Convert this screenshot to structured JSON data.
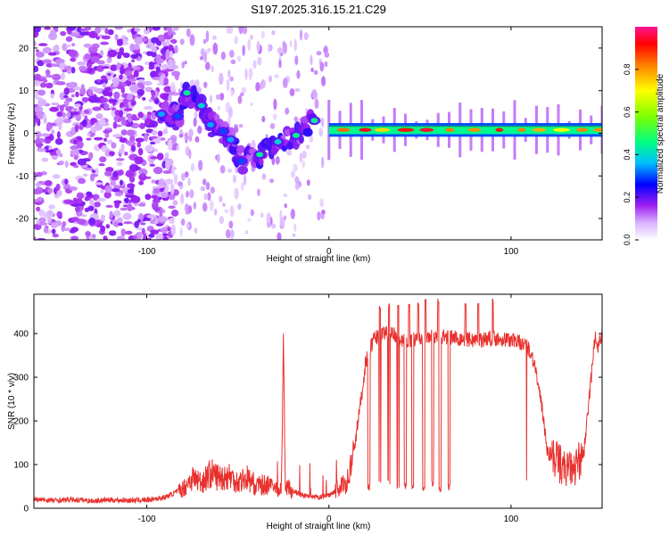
{
  "title": "S197.2025.316.15.21.C29",
  "colors": {
    "snr_line": "#e8312e",
    "background": "#ffffff"
  },
  "chart_data": [
    {
      "type": "heatmap",
      "name": "spectrogram",
      "xlabel": "Height of straight line (km)",
      "ylabel": "Frequency (Hz)",
      "xlim": [
        -162,
        150
      ],
      "ylim": [
        -25,
        25
      ],
      "x_ticks": [
        -100,
        0,
        100
      ],
      "y_ticks": [
        -20,
        -10,
        0,
        10,
        20
      ],
      "colorbar": {
        "label": "Normalized spectral amplitude",
        "range": [
          0.0,
          1.0
        ],
        "ticks": [
          0.0,
          0.2,
          0.4,
          0.6,
          0.8
        ],
        "colormap": [
          "#ffffff",
          "#a020f0",
          "#0000ff",
          "#00bfff",
          "#00ff80",
          "#80ff00",
          "#ffff00",
          "#ff8000",
          "#ff0000",
          "#ff00a0"
        ]
      },
      "features": {
        "noise_region_km": [
          -162,
          -90
        ],
        "descending_branch": [
          {
            "x": -92,
            "freq": 4.5,
            "amp": 0.35
          },
          {
            "x": -83,
            "freq": 4.0,
            "amp": 0.3
          },
          {
            "x": -78,
            "freq": 9.5,
            "amp": 0.45
          },
          {
            "x": -70,
            "freq": 6.5,
            "amp": 0.4
          },
          {
            "x": -65,
            "freq": 2.0,
            "amp": 0.35
          },
          {
            "x": -58,
            "freq": 0.5,
            "amp": 0.3
          },
          {
            "x": -54,
            "freq": -1.5,
            "amp": 0.35
          },
          {
            "x": -48,
            "freq": -6.5,
            "amp": 0.3
          },
          {
            "x": -38,
            "freq": -5.0,
            "amp": 0.45
          },
          {
            "x": -28,
            "freq": -2.0,
            "amp": 0.4
          },
          {
            "x": -18,
            "freq": -0.5,
            "amp": 0.45
          },
          {
            "x": -8,
            "freq": 3.0,
            "amp": 0.45
          }
        ],
        "carrier_band": {
          "x_start": 0,
          "x_end": 150,
          "freq": 0.8,
          "peak_amp": 0.95
        }
      }
    },
    {
      "type": "line",
      "name": "snr",
      "xlabel": "Height of straight line (km)",
      "ylabel": "SNR (10 * v/v)",
      "xlim": [
        -162,
        150
      ],
      "ylim": [
        0,
        490
      ],
      "x_ticks": [
        -100,
        0,
        100
      ],
      "y_ticks": [
        0,
        100,
        200,
        300,
        400
      ],
      "series": [
        {
          "name": "SNR",
          "x": [
            -162,
            -150,
            -140,
            -130,
            -120,
            -110,
            -100,
            -95,
            -90,
            -85,
            -80,
            -75,
            -70,
            -65,
            -60,
            -55,
            -50,
            -45,
            -40,
            -35,
            -30,
            -26,
            -25,
            -24,
            -22,
            -20,
            -15,
            -10,
            -5,
            0,
            5,
            10,
            13,
            16,
            18,
            20,
            22,
            25,
            30,
            35,
            40,
            50,
            60,
            70,
            80,
            90,
            100,
            105,
            110,
            113,
            115,
            118,
            120,
            125,
            130,
            135,
            140,
            143,
            146,
            148,
            150
          ],
          "values": [
            20,
            18,
            20,
            17,
            19,
            18,
            19,
            22,
            25,
            35,
            45,
            70,
            60,
            80,
            70,
            75,
            60,
            70,
            50,
            55,
            45,
            50,
            395,
            60,
            45,
            40,
            30,
            25,
            25,
            30,
            45,
            60,
            110,
            200,
            260,
            330,
            360,
            390,
            400,
            405,
            380,
            390,
            395,
            390,
            385,
            390,
            385,
            380,
            365,
            330,
            280,
            200,
            130,
            110,
            90,
            90,
            130,
            250,
            390,
            370,
            400
          ]
        }
      ],
      "dips": [
        {
          "x": 22,
          "value": 40
        },
        {
          "x": 28,
          "value": 50
        },
        {
          "x": 33,
          "value": 55
        },
        {
          "x": 38,
          "value": 40
        },
        {
          "x": 42,
          "value": 45
        },
        {
          "x": 46,
          "value": 45
        },
        {
          "x": 52,
          "value": 40
        },
        {
          "x": 57,
          "value": 50
        },
        {
          "x": 61,
          "value": 35
        },
        {
          "x": 66,
          "value": 40
        }
      ],
      "spikes": [
        {
          "x": 28,
          "value": 465
        },
        {
          "x": 33,
          "value": 470
        },
        {
          "x": 38,
          "value": 470
        },
        {
          "x": 44,
          "value": 470
        },
        {
          "x": 49,
          "value": 470
        },
        {
          "x": 53,
          "value": 480
        },
        {
          "x": 60,
          "value": 480
        },
        {
          "x": 75,
          "value": 470
        },
        {
          "x": 82,
          "value": 470
        },
        {
          "x": 90,
          "value": 480
        }
      ]
    }
  ]
}
